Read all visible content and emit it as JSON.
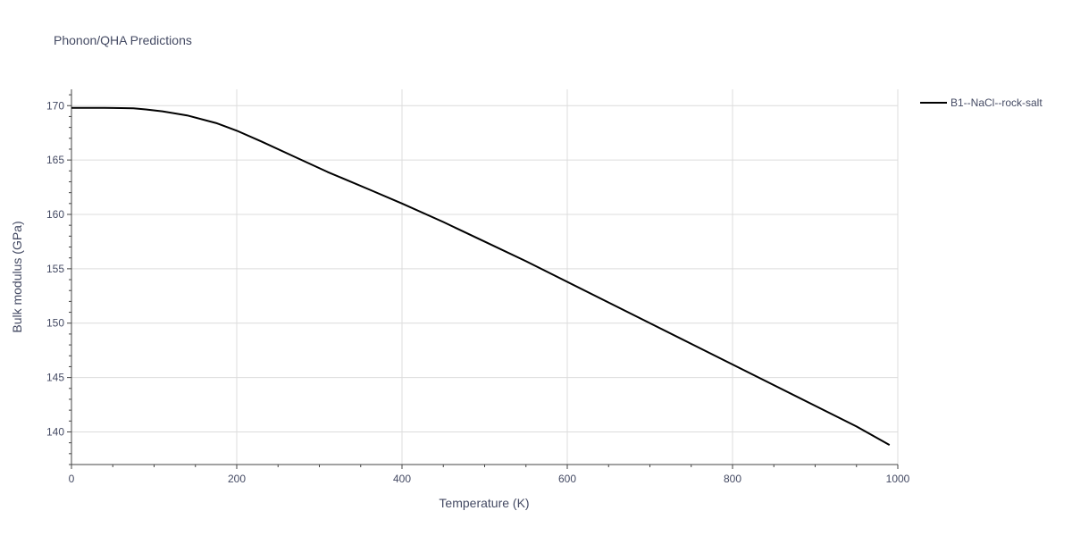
{
  "chart_data": {
    "type": "line",
    "title": "Phonon/QHA Predictions",
    "xlabel": "Temperature (K)",
    "ylabel": "Bulk modulus (GPa)",
    "xlim": [
      0,
      1000
    ],
    "ylim": [
      137,
      171.5
    ],
    "x_ticks": [
      0,
      200,
      400,
      600,
      800,
      1000
    ],
    "y_ticks": [
      140,
      145,
      150,
      155,
      160,
      165,
      170
    ],
    "grid": true,
    "legend_position": "top-right",
    "series": [
      {
        "name": "B1--NaCl--rock-salt",
        "color": "#000000",
        "x": [
          0,
          20,
          40,
          60,
          75,
          90,
          110,
          140,
          175,
          200,
          230,
          270,
          310,
          360,
          400,
          450,
          500,
          550,
          600,
          650,
          700,
          750,
          800,
          850,
          900,
          950,
          990
        ],
        "y": [
          169.8,
          169.8,
          169.8,
          169.78,
          169.75,
          169.65,
          169.48,
          169.1,
          168.4,
          167.7,
          166.7,
          165.3,
          163.9,
          162.3,
          161.0,
          159.3,
          157.5,
          155.7,
          153.8,
          151.9,
          150.0,
          148.1,
          146.2,
          144.3,
          142.4,
          140.5,
          138.8
        ]
      }
    ]
  }
}
